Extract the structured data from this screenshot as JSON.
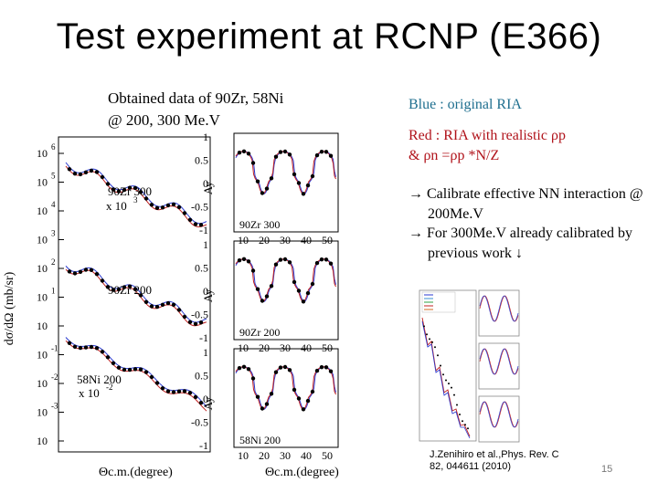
{
  "slide": {
    "title": "Test experiment at RCNP (E366)",
    "caption_line1": "Obtained data of 90Zr, 58Ni",
    "caption_line2": "@ 200, 300 Me.V",
    "blue_note": "Blue : original RIA",
    "red_note_line1": "Red : RIA with realistic ρp",
    "red_note_line2": "& ρn =ρp *N/Z",
    "notes": [
      "→ Calibrate effective NN interaction @ 200Me.V",
      "→ For 300Me.V already calibrated by previous work ↓"
    ],
    "reference_line1": "J.Zenihiro et al.,Phys. Rev. C",
    "reference_line2": "82, 044611 (2010)",
    "page_number": "15"
  },
  "chart_data": [
    {
      "type": "scatter",
      "panel": "cross-section",
      "xlabel": "Θc.m.(degree)",
      "ylabel": "dσ/dΩ (mb/sr)",
      "scale": "log",
      "ytick_labels": [
        "10",
        "10",
        "10",
        "10",
        "10",
        "10",
        "10",
        "10",
        "10",
        "10",
        "10"
      ],
      "ytick_exponents": [
        "6",
        "5",
        "4",
        "3",
        "2",
        "1",
        "",
        "-1",
        "-2",
        "-3",
        ""
      ],
      "series": [
        {
          "name": "90Zr 300",
          "scale_note": "x 10",
          "scale_exp": "3"
        },
        {
          "name": "90Zr 200"
        },
        {
          "name": "58Ni 200",
          "scale_note": "x 10",
          "scale_exp": "-2"
        }
      ]
    },
    {
      "type": "scatter",
      "panel": "analyzing-power",
      "xlabel": "Θc.m.(degree)",
      "ylabel": "Ay",
      "x_ticks": [
        "10",
        "20",
        "30",
        "40",
        "50"
      ],
      "y_ticks": [
        "1",
        "0.5",
        "0",
        "-0.5",
        "-1"
      ],
      "panels": [
        {
          "label": "90Zr 300"
        },
        {
          "label": "90Zr 200"
        },
        {
          "label": "58Ni 200"
        }
      ]
    }
  ]
}
